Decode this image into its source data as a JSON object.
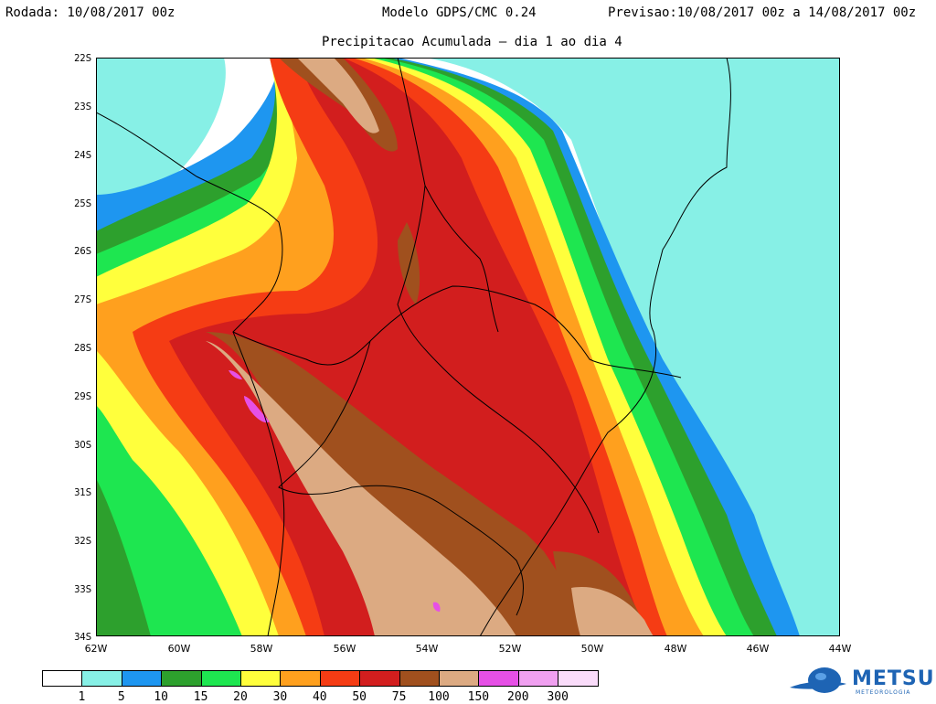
{
  "header": {
    "left": "Rodada: 10/08/2017 00z",
    "center": "Modelo GDPS/CMC 0.24",
    "right": "Previsao:10/08/2017 00z a 14/08/2017 00z"
  },
  "subtitle": "Precipitacao Acumulada – dia 1 ao dia 4",
  "map": {
    "lat_labels": [
      "22S",
      "23S",
      "24S",
      "25S",
      "26S",
      "27S",
      "28S",
      "29S",
      "30S",
      "31S",
      "32S",
      "33S",
      "34S"
    ],
    "lon_labels": [
      "62W",
      "60W",
      "58W",
      "56W",
      "54W",
      "52W",
      "50W",
      "48W",
      "46W",
      "44W"
    ]
  },
  "legend": {
    "colors": [
      "#ffffff",
      "#87f0e6",
      "#1e96f0",
      "#2da02d",
      "#1ee650",
      "#ffff3c",
      "#ffa01e",
      "#f53c14",
      "#d21e1e",
      "#a0501e",
      "#dcaa82",
      "#e650e6",
      "#f0a0f0",
      "#fadcfa"
    ],
    "labels": [
      "1",
      "5",
      "10",
      "15",
      "20",
      "30",
      "40",
      "50",
      "75",
      "100",
      "150",
      "200",
      "300"
    ]
  },
  "logo": {
    "name": "METSUL",
    "tagline": "METEOROLOGIA"
  }
}
